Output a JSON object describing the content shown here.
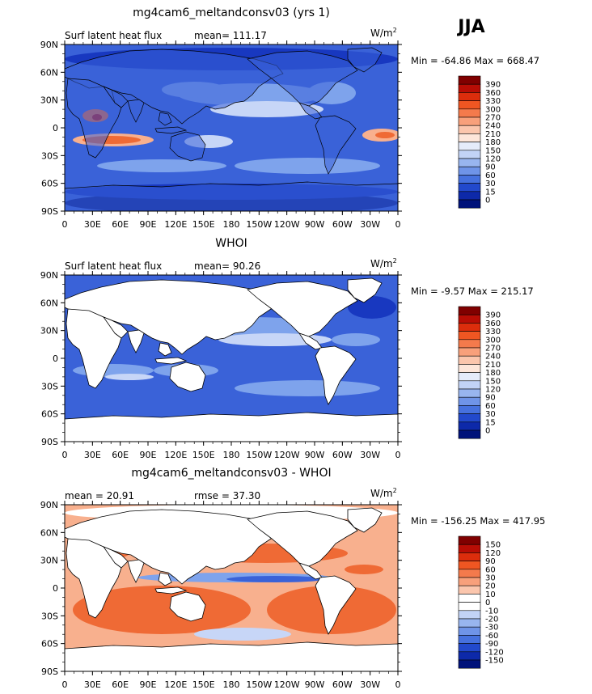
{
  "season": "JJA",
  "panels": [
    {
      "title": "mg4cam6_meltandconsv03 (yrs 1)",
      "left_text": "Surf latent heat flux",
      "stat_text": "mean=  111.17",
      "units": "W/m",
      "units_sup": "2",
      "minmax": "Min = -64.86  Max = 668.47",
      "colorbar_labels": [
        "390",
        "360",
        "330",
        "300",
        "270",
        "240",
        "210",
        "180",
        "150",
        "120",
        "90",
        "60",
        "30",
        "15",
        "0"
      ],
      "colorbar_colors": [
        "#800000",
        "#b80d05",
        "#dc2d0c",
        "#ef5622",
        "#f47a4c",
        "#f8a07b",
        "#fbc6ad",
        "#fde6da",
        "#e5ecfb",
        "#c2d3f6",
        "#98b5ef",
        "#6f94e8",
        "#4671de",
        "#2249cc",
        "#0d29a9",
        "#00127a"
      ]
    },
    {
      "title": "WHOI",
      "left_text": "Surf latent heat flux",
      "stat_text": "mean=   90.26",
      "units": "W/m",
      "units_sup": "2",
      "minmax": "Min =  -9.57  Max = 215.17",
      "colorbar_labels": [
        "390",
        "360",
        "330",
        "300",
        "270",
        "240",
        "210",
        "180",
        "150",
        "120",
        "90",
        "60",
        "30",
        "15",
        "0"
      ],
      "colorbar_colors": [
        "#800000",
        "#b80d05",
        "#dc2d0c",
        "#ef5622",
        "#f47a4c",
        "#f8a07b",
        "#fbc6ad",
        "#fde6da",
        "#e5ecfb",
        "#c2d3f6",
        "#98b5ef",
        "#6f94e8",
        "#4671de",
        "#2249cc",
        "#0d29a9",
        "#00127a"
      ]
    },
    {
      "title": "mg4cam6_meltandconsv03 - WHOI",
      "left_text": "mean =   20.91",
      "stat_text": "rmse =   37.30",
      "units": "W/m",
      "units_sup": "2",
      "minmax": "Min = -156.25 Max = 417.95",
      "colorbar_labels": [
        "150",
        "120",
        "90",
        "60",
        "30",
        "20",
        "10",
        "0",
        "-10",
        "-20",
        "-30",
        "-60",
        "-90",
        "-120",
        "-150"
      ],
      "colorbar_colors": [
        "#800000",
        "#b80d05",
        "#dc2d0c",
        "#ef5622",
        "#f47a4c",
        "#f8a07b",
        "#fbc6ad",
        "#ffffff",
        "#ffffff",
        "#c2d3f6",
        "#98b5ef",
        "#6f94e8",
        "#4671de",
        "#2249cc",
        "#0d29a9",
        "#00127a"
      ]
    }
  ],
  "lat_labels": [
    "90N",
    "60N",
    "30N",
    "0",
    "30S",
    "60S",
    "90S"
  ],
  "lon_labels": [
    "0",
    "30E",
    "60E",
    "90E",
    "120E",
    "150E",
    "180",
    "150W",
    "120W",
    "90W",
    "60W",
    "30W",
    "0"
  ],
  "map_colors": {
    "deep": "#0a1f8f",
    "dark": "#1838c0",
    "mid": "#3a62d8",
    "light": "#7ea3ec",
    "pale": "#c7d6f7",
    "cream": "#fde6da",
    "peach": "#f8b08e",
    "orange": "#ef6a35",
    "red": "#c81a0a",
    "land_white": "#ffffff",
    "coast": "#000000"
  }
}
